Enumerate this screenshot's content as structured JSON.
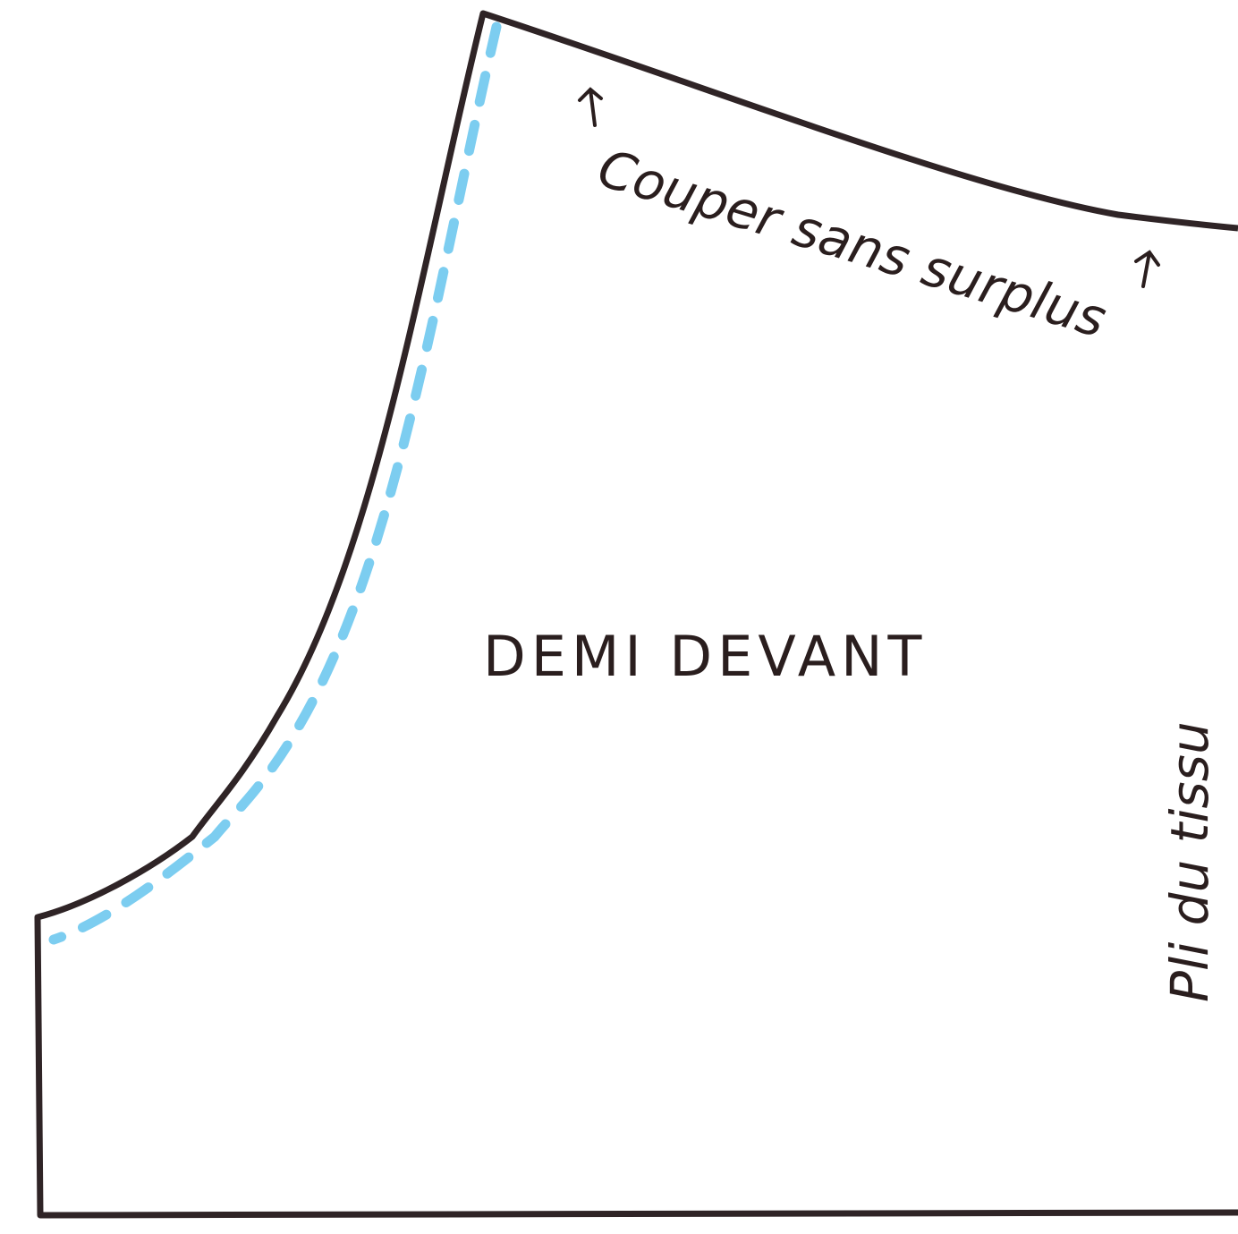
{
  "annotations": {
    "top_edge": "Couper sans surplus",
    "center": "DEMI DEVANT",
    "right_edge": "Pli du tissu"
  }
}
